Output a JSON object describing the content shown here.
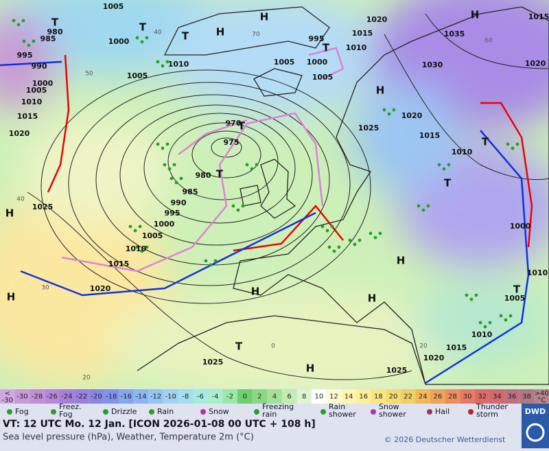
{
  "map": {
    "pressure_labels": [
      "1005",
      "1000",
      "995",
      "990",
      "980",
      "985",
      "1000",
      "1005",
      "1010",
      "1015",
      "1020",
      "1025",
      "1005",
      "1010",
      "1005",
      "1000",
      "995",
      "1005",
      "1015",
      "1010",
      "1020",
      "1035",
      "1030",
      "1020",
      "1015",
      "1020",
      "1025",
      "1015",
      "1010",
      "975",
      "970",
      "980",
      "985",
      "990",
      "995",
      "1000",
      "1005",
      "1010",
      "1015",
      "1020",
      "1025",
      "1025",
      "1020",
      "1015",
      "1010",
      "1005",
      "1010",
      "1000"
    ],
    "temperature_labels": [
      "40",
      "30",
      "20",
      "20",
      "60",
      "70",
      "50",
      "40",
      "0"
    ],
    "centers": [
      "H",
      "T",
      "T",
      "H",
      "T",
      "H",
      "H",
      "T",
      "T",
      "H",
      "H",
      "H",
      "H",
      "H",
      "T",
      "H",
      "T",
      "T",
      "T",
      "T"
    ]
  },
  "legend": {
    "temperature_scale": {
      "low": [
        "<",
        "-30"
      ],
      "steps": [
        "-30",
        "-28",
        "-26",
        "-24",
        "-22",
        "-20",
        "-18",
        "-16",
        "-14",
        "-12",
        "-10",
        "-8",
        "-6",
        "-4",
        "-2",
        "0",
        "2",
        "4",
        "6",
        "8",
        "10",
        "12",
        "14",
        "16",
        "18",
        "20",
        "22",
        "24",
        "26",
        "28",
        "30",
        "32",
        "34",
        "36",
        "38"
      ],
      "colors": [
        "#c89ad8",
        "#c28fd6",
        "#b987d8",
        "#a77fd8",
        "#9a7fdc",
        "#8a86e4",
        "#8093ea",
        "#84a6ee",
        "#8bb6f2",
        "#96c4f2",
        "#a2d2f2",
        "#9fe0ec",
        "#a4ece0",
        "#a8f0cc",
        "#9ae8a8",
        "#70d070",
        "#8ad884",
        "#a5e09a",
        "#c3ebb2",
        "#def5d0",
        "#ffffff",
        "#fffbd0",
        "#fff6b0",
        "#fdef94",
        "#f9e680",
        "#f5dc70",
        "#f2cf62",
        "#f2b858",
        "#f0a258",
        "#ee8d5c",
        "#e87a60",
        "#dd6a64",
        "#d06a70",
        "#c0707a",
        "#b07880"
      ],
      "high": [
        ">40",
        "°C"
      ]
    },
    "weather": [
      "Fog",
      "Freez.\nFog",
      "Drizzle",
      "Rain",
      "Snow",
      "Freezing\nrain",
      "Rain\nshower",
      "Snow\nshower",
      "Hail",
      "Thunder\nstorm"
    ]
  },
  "footer": {
    "valid_time": "VT: 12 UTC Mo.  12 Jan. [ICON 2026-01-08  00 UTC + 108 h]",
    "description": "Sea level pressure (hPa), Weather, Temperature 2m (°C)",
    "copyright": "© 2026 Deutscher Wetterdienst",
    "logo": "DWD"
  }
}
